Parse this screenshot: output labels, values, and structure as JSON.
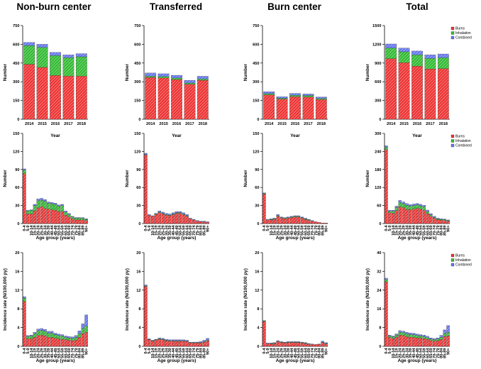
{
  "column_titles": [
    "Non-burn center",
    "Transferred",
    "Burn center",
    "Total"
  ],
  "colors": {
    "burns": "#ee3333",
    "inhalation": "#33bb33",
    "combined": "#6677ee",
    "axis": "#000000"
  },
  "chart_data": [
    {
      "id": "nbc-year",
      "type": "bar",
      "stacked": true,
      "xlabel": "Year",
      "ylabel": "Number",
      "yticks": [
        0,
        150,
        300,
        450,
        600,
        750
      ],
      "ylim": [
        0,
        750
      ],
      "categories": [
        "2014",
        "2015",
        "2016",
        "2017",
        "2018"
      ],
      "series": [
        {
          "name": "Burns",
          "values": [
            440,
            415,
            350,
            345,
            345
          ]
        },
        {
          "name": "Inhalation",
          "values": [
            150,
            160,
            160,
            148,
            155
          ]
        },
        {
          "name": "Combined",
          "values": [
            25,
            25,
            25,
            22,
            25
          ]
        }
      ]
    },
    {
      "id": "tr-year",
      "type": "bar",
      "stacked": true,
      "xlabel": "Year",
      "ylabel": "Number",
      "yticks": [
        0,
        150,
        300,
        450,
        600,
        750
      ],
      "ylim": [
        0,
        750
      ],
      "categories": [
        "2014",
        "2015",
        "2016",
        "2017",
        "2018"
      ],
      "series": [
        {
          "name": "Burns",
          "values": [
            335,
            330,
            318,
            280,
            312
          ]
        },
        {
          "name": "Inhalation",
          "values": [
            10,
            12,
            12,
            10,
            10
          ]
        },
        {
          "name": "Combined",
          "values": [
            25,
            22,
            22,
            22,
            22
          ]
        }
      ]
    },
    {
      "id": "bc-year",
      "type": "bar",
      "stacked": true,
      "xlabel": "Year",
      "ylabel": "Number",
      "yticks": [
        0,
        150,
        300,
        450,
        600,
        750
      ],
      "ylim": [
        0,
        750
      ],
      "categories": [
        "2014",
        "2015",
        "2016",
        "2017",
        "2018"
      ],
      "series": [
        {
          "name": "Burns",
          "values": [
            195,
            160,
            180,
            178,
            158
          ]
        },
        {
          "name": "Inhalation",
          "values": [
            10,
            8,
            12,
            12,
            8
          ]
        },
        {
          "name": "Combined",
          "values": [
            15,
            12,
            15,
            12,
            12
          ]
        }
      ]
    },
    {
      "id": "tot-year",
      "type": "bar",
      "stacked": true,
      "xlabel": "Year",
      "ylabel": "Number",
      "yticks": [
        0,
        300,
        600,
        900,
        1200,
        1500
      ],
      "ylim": [
        0,
        1500
      ],
      "categories": [
        "2014",
        "2015",
        "2016",
        "2017",
        "2018"
      ],
      "series": [
        {
          "name": "Burns",
          "values": [
            970,
            905,
            850,
            805,
            810
          ]
        },
        {
          "name": "Inhalation",
          "values": [
            170,
            175,
            180,
            168,
            175
          ]
        },
        {
          "name": "Combined",
          "values": [
            65,
            60,
            62,
            58,
            60
          ]
        }
      ],
      "legend": [
        "Burns",
        "Inhalation",
        "Combined"
      ]
    },
    {
      "id": "nbc-age",
      "type": "bar",
      "stacked": true,
      "xlabel": "Age group (years)",
      "ylabel": "Number",
      "yticks": [
        0,
        30,
        60,
        90,
        120,
        150
      ],
      "ylim": [
        0,
        150
      ],
      "categories": [
        "0-4",
        "5-9",
        "10-14",
        "15-19",
        "20-24",
        "25-29",
        "30-34",
        "35-39",
        "40-44",
        "45-49",
        "50-54",
        "55-59",
        "60-64",
        "65-69",
        "70-74",
        "75-79",
        "80-84",
        "85-89",
        "90+"
      ],
      "series": [
        {
          "name": "Burns",
          "values": [
            83,
            16,
            16,
            21,
            26,
            28,
            25,
            24,
            23,
            22,
            20,
            20,
            14,
            11,
            8,
            6,
            6,
            6,
            5
          ]
        },
        {
          "name": "Inhalation",
          "values": [
            6,
            5,
            6,
            9,
            12,
            11,
            12,
            10,
            10,
            10,
            9,
            10,
            5,
            4,
            3,
            3,
            3,
            3,
            2
          ]
        },
        {
          "name": "Combined",
          "values": [
            2,
            1,
            1,
            2,
            3,
            3,
            3,
            2,
            2,
            2,
            2,
            2,
            2,
            2,
            1,
            1,
            1,
            1,
            1
          ]
        }
      ]
    },
    {
      "id": "tr-age",
      "type": "bar",
      "stacked": true,
      "xlabel": "Age group (years)",
      "ylabel": "Number",
      "yticks": [
        0,
        30,
        60,
        90,
        120,
        150
      ],
      "ylim": [
        0,
        150
      ],
      "categories": [
        "0-4",
        "5-9",
        "10-14",
        "15-19",
        "20-24",
        "25-29",
        "30-34",
        "35-39",
        "40-44",
        "45-49",
        "50-54",
        "55-59",
        "60-64",
        "65-69",
        "70-74",
        "75-79",
        "80-84",
        "85-89",
        "90+"
      ],
      "series": [
        {
          "name": "Burns",
          "values": [
            114,
            14,
            12,
            15,
            18,
            16,
            14,
            13,
            15,
            17,
            17,
            15,
            12,
            8,
            6,
            4,
            3,
            3,
            2
          ]
        },
        {
          "name": "Inhalation",
          "values": [
            1,
            0,
            0,
            1,
            1,
            1,
            1,
            1,
            1,
            1,
            1,
            1,
            1,
            0,
            0,
            0,
            0,
            0,
            0
          ]
        },
        {
          "name": "Combined",
          "values": [
            2,
            1,
            1,
            1,
            2,
            2,
            2,
            2,
            2,
            2,
            2,
            2,
            2,
            1,
            1,
            1,
            1,
            1,
            1
          ]
        }
      ]
    },
    {
      "id": "bc-age",
      "type": "bar",
      "stacked": true,
      "xlabel": "Age group (years)",
      "ylabel": "Number",
      "yticks": [
        0,
        30,
        60,
        90,
        120,
        150
      ],
      "ylim": [
        0,
        150
      ],
      "categories": [
        "0-4",
        "5-9",
        "10-14",
        "15-19",
        "20-24",
        "25-29",
        "30-34",
        "35-39",
        "40-44",
        "45-49",
        "50-54",
        "55-59",
        "60-64",
        "65-69",
        "70-74",
        "75-79",
        "80-84",
        "85-89",
        "90+"
      ],
      "series": [
        {
          "name": "Burns",
          "values": [
            49,
            6,
            6,
            7,
            12,
            9,
            8,
            9,
            10,
            11,
            11,
            9,
            7,
            5,
            4,
            3,
            2,
            1,
            1
          ]
        },
        {
          "name": "Inhalation",
          "values": [
            1,
            0,
            1,
            1,
            1,
            1,
            1,
            1,
            1,
            1,
            1,
            1,
            1,
            1,
            0,
            0,
            0,
            0,
            0
          ]
        },
        {
          "name": "Combined",
          "values": [
            1,
            1,
            1,
            1,
            2,
            1,
            1,
            1,
            1,
            1,
            1,
            1,
            1,
            1,
            1,
            0,
            0,
            0,
            0
          ]
        }
      ]
    },
    {
      "id": "tot-age",
      "type": "bar",
      "stacked": true,
      "xlabel": "Age group (years)",
      "ylabel": "Number",
      "yticks": [
        0,
        60,
        120,
        180,
        240,
        300
      ],
      "ylim": [
        0,
        300
      ],
      "categories": [
        "0-4",
        "5-9",
        "10-14",
        "15-19",
        "20-24",
        "25-29",
        "30-34",
        "35-39",
        "40-44",
        "45-49",
        "50-54",
        "55-59",
        "60-64",
        "65-69",
        "70-74",
        "75-79",
        "80-84",
        "85-89",
        "90+"
      ],
      "series": [
        {
          "name": "Burns",
          "values": [
            246,
            36,
            34,
            43,
            56,
            53,
            47,
            46,
            48,
            50,
            48,
            44,
            33,
            24,
            18,
            13,
            11,
            10,
            8
          ]
        },
        {
          "name": "Inhalation",
          "values": [
            8,
            5,
            7,
            11,
            14,
            13,
            14,
            12,
            12,
            12,
            11,
            12,
            7,
            5,
            3,
            3,
            3,
            3,
            2
          ]
        },
        {
          "name": "Combined",
          "values": [
            5,
            3,
            3,
            4,
            7,
            6,
            6,
            5,
            5,
            5,
            5,
            5,
            5,
            4,
            3,
            2,
            2,
            2,
            2
          ]
        }
      ],
      "legend": [
        "Burns",
        "Inhalation",
        "Combined"
      ]
    },
    {
      "id": "nbc-rate",
      "type": "bar",
      "stacked": true,
      "xlabel": "Age group (years)",
      "ylabel": "Incidence rate (N/100,000 py)",
      "yticks": [
        0,
        4,
        8,
        12,
        16,
        20
      ],
      "ylim": [
        0,
        20
      ],
      "categories": [
        "0-4",
        "5-9",
        "10-14",
        "15-19",
        "20-24",
        "25-29",
        "30-34",
        "35-39",
        "40-44",
        "45-49",
        "50-54",
        "55-59",
        "60-64",
        "65-69",
        "70-74",
        "75-79",
        "80-84",
        "85-89",
        "90+"
      ],
      "series": [
        {
          "name": "Burns",
          "values": [
            9.6,
            1.6,
            1.6,
            1.9,
            2.3,
            2.4,
            2.2,
            1.9,
            1.9,
            1.7,
            1.6,
            1.5,
            1.4,
            1.3,
            1.2,
            1.3,
            1.9,
            2.7,
            3.0
          ]
        },
        {
          "name": "Inhalation",
          "values": [
            0.7,
            0.5,
            0.6,
            0.8,
            1.0,
            1.0,
            1.0,
            0.9,
            0.9,
            0.8,
            0.7,
            0.7,
            0.5,
            0.5,
            0.5,
            0.6,
            0.8,
            1.1,
            1.3
          ]
        },
        {
          "name": "Combined",
          "values": [
            0.3,
            0.2,
            0.2,
            0.3,
            0.4,
            0.4,
            0.4,
            0.4,
            0.4,
            0.3,
            0.3,
            0.3,
            0.3,
            0.3,
            0.3,
            0.4,
            0.6,
            1.0,
            2.4
          ]
        }
      ]
    },
    {
      "id": "tr-rate",
      "type": "bar",
      "stacked": true,
      "xlabel": "Age group (years)",
      "ylabel": "Incidence rate (N/100,000 py)",
      "yticks": [
        0,
        4,
        8,
        12,
        16,
        20
      ],
      "ylim": [
        0,
        20
      ],
      "categories": [
        "0-4",
        "5-9",
        "10-14",
        "15-19",
        "20-24",
        "25-29",
        "30-34",
        "35-39",
        "40-44",
        "45-49",
        "50-54",
        "55-59",
        "60-64",
        "65-69",
        "70-74",
        "75-79",
        "80-84",
        "85-89",
        "90+"
      ],
      "series": [
        {
          "name": "Burns",
          "values": [
            12.8,
            1.4,
            1.1,
            1.3,
            1.5,
            1.4,
            1.2,
            1.1,
            1.1,
            1.1,
            1.1,
            1.1,
            1.0,
            0.7,
            0.7,
            0.7,
            0.7,
            0.9,
            1.2
          ]
        },
        {
          "name": "Inhalation",
          "values": [
            0.1,
            0.1,
            0.1,
            0.1,
            0.1,
            0.1,
            0.1,
            0.1,
            0.1,
            0.1,
            0.1,
            0.1,
            0.1,
            0.1,
            0.1,
            0.1,
            0.1,
            0.1,
            0.1
          ]
        },
        {
          "name": "Combined",
          "values": [
            0.2,
            0.1,
            0.1,
            0.1,
            0.2,
            0.2,
            0.2,
            0.2,
            0.2,
            0.2,
            0.2,
            0.2,
            0.2,
            0.1,
            0.1,
            0.1,
            0.2,
            0.3,
            0.4
          ]
        }
      ]
    },
    {
      "id": "bc-rate",
      "type": "bar",
      "stacked": true,
      "xlabel": "Age group (years)",
      "ylabel": "Incidence rate (N/100,000 py)",
      "yticks": [
        0,
        4,
        8,
        12,
        16,
        20
      ],
      "ylim": [
        0,
        20
      ],
      "categories": [
        "0-4",
        "5-9",
        "10-14",
        "15-19",
        "20-24",
        "25-29",
        "30-34",
        "35-39",
        "40-44",
        "45-49",
        "50-54",
        "55-59",
        "60-64",
        "65-69",
        "70-74",
        "75-79",
        "80-84",
        "85-89",
        "90+"
      ],
      "series": [
        {
          "name": "Burns",
          "values": [
            5.3,
            0.6,
            0.5,
            0.6,
            1.0,
            0.8,
            0.7,
            0.8,
            0.8,
            0.8,
            0.8,
            0.7,
            0.6,
            0.4,
            0.4,
            0.4,
            0.4,
            0.8,
            0.5
          ]
        },
        {
          "name": "Inhalation",
          "values": [
            0.1,
            0.0,
            0.1,
            0.1,
            0.1,
            0.1,
            0.1,
            0.1,
            0.1,
            0.1,
            0.1,
            0.1,
            0.1,
            0.1,
            0.0,
            0.0,
            0.0,
            0.1,
            0.1
          ]
        },
        {
          "name": "Combined",
          "values": [
            0.1,
            0.1,
            0.1,
            0.1,
            0.1,
            0.1,
            0.1,
            0.1,
            0.1,
            0.1,
            0.1,
            0.1,
            0.1,
            0.1,
            0.1,
            0.0,
            0.1,
            0.2,
            0.2
          ]
        }
      ]
    },
    {
      "id": "tot-rate",
      "type": "bar",
      "stacked": true,
      "xlabel": "Age group (years)",
      "ylabel": "Incidence rate (N/100,000 py)",
      "yticks": [
        0,
        8,
        16,
        24,
        32,
        40
      ],
      "ylim": [
        0,
        40
      ],
      "categories": [
        "0-4",
        "5-9",
        "10-14",
        "15-19",
        "20-24",
        "25-29",
        "30-34",
        "35-39",
        "40-44",
        "45-49",
        "50-54",
        "55-59",
        "60-64",
        "65-69",
        "70-74",
        "75-79",
        "80-84",
        "85-89",
        "90+"
      ],
      "series": [
        {
          "name": "Burns",
          "values": [
            27.5,
            3.8,
            3.3,
            3.9,
            4.8,
            4.6,
            4.1,
            3.9,
            3.8,
            3.6,
            3.5,
            3.3,
            3.0,
            2.5,
            2.2,
            2.4,
            2.9,
            4.2,
            4.5
          ]
        },
        {
          "name": "Inhalation",
          "values": [
            1.0,
            0.6,
            0.7,
            0.9,
            1.2,
            1.2,
            1.2,
            1.1,
            1.1,
            1.0,
            0.9,
            0.9,
            0.7,
            0.6,
            0.6,
            0.7,
            0.9,
            1.2,
            1.4
          ]
        },
        {
          "name": "Combined",
          "values": [
            0.6,
            0.4,
            0.4,
            0.5,
            0.7,
            0.7,
            0.7,
            0.7,
            0.7,
            0.6,
            0.6,
            0.6,
            0.6,
            0.5,
            0.5,
            0.5,
            0.9,
            1.6,
            3.0
          ]
        }
      ],
      "legend": [
        "Burns",
        "Inhalation",
        "Combined"
      ]
    }
  ]
}
